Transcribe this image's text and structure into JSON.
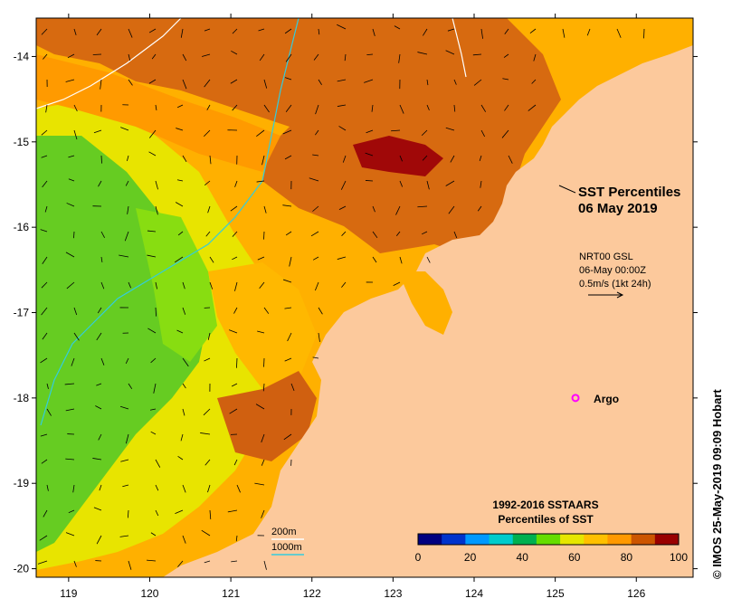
{
  "map": {
    "title_line1": "SST Percentiles",
    "title_line2": "06 May 2019",
    "lon_ticks": [
      "119",
      "120",
      "121",
      "122",
      "123",
      "124",
      "125",
      "126"
    ],
    "lat_ticks": [
      "-14",
      "-15",
      "-16",
      "-17",
      "-18",
      "-19",
      "-20"
    ],
    "lon_range": [
      118.6,
      126.7
    ],
    "lat_range": [
      -20.1,
      -13.55
    ],
    "land_color": "#fcc99c",
    "wind_info": {
      "line1": "NRT00 GSL",
      "line2": "06-May 00:00Z",
      "line3": "0.5m/s (1kt 24h)"
    },
    "argo": {
      "label": "Argo",
      "lon": 125.25,
      "lat": -18.0,
      "color": "#ff00ff"
    },
    "contours": {
      "label_200m": "200m",
      "label_1000m": "1000m",
      "color_200m": "#ffffff",
      "color_1000m": "#33ccdd"
    },
    "legend": {
      "title_line1": "1992-2016 SSTAARS",
      "title_line2": "Percentiles of SST",
      "tick_labels": [
        "0",
        "20",
        "40",
        "60",
        "80",
        "100"
      ],
      "colors": [
        "#000080",
        "#0033cc",
        "#0099ff",
        "#00cccc",
        "#00b050",
        "#66dd00",
        "#e6e600",
        "#ffc000",
        "#ff9900",
        "#cc5500",
        "#990000"
      ]
    },
    "credit": "© IMOS 25-May-2019 09:09 Hobart"
  }
}
